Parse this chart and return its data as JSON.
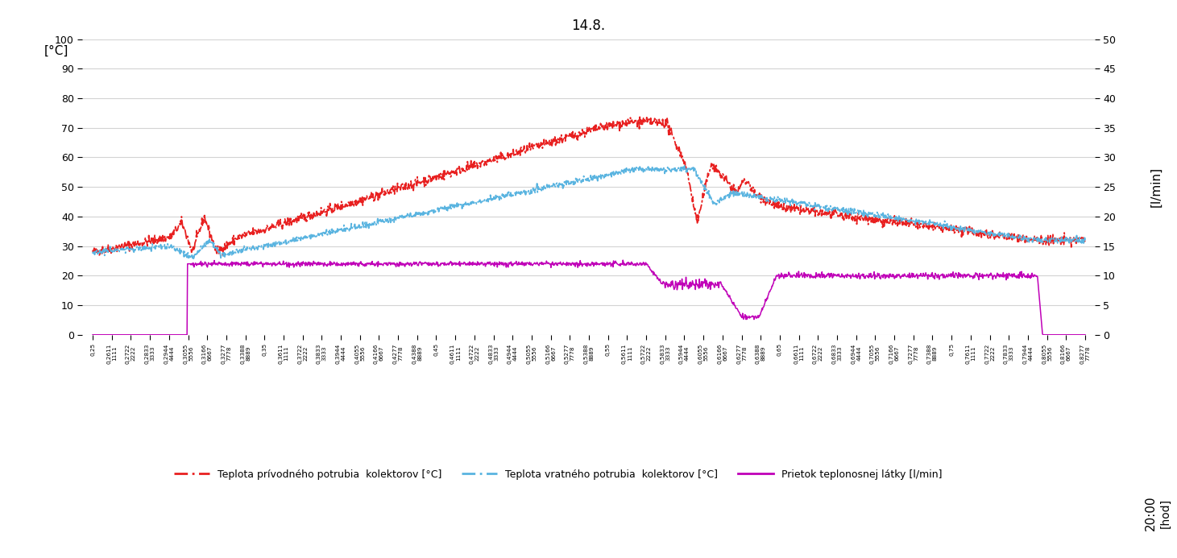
{
  "title": "14.8.",
  "title_fontsize": 12,
  "ylabel_left": "[°C]",
  "ylabel_right": "[l/min]",
  "ylim_left": [
    0,
    100
  ],
  "ylim_right": [
    0,
    50
  ],
  "yticks_left": [
    0,
    10,
    20,
    30,
    40,
    50,
    60,
    70,
    80,
    90,
    100
  ],
  "yticks_right": [
    0,
    5,
    10,
    15,
    20,
    25,
    30,
    35,
    40,
    45,
    50
  ],
  "background_color": "#ffffff",
  "grid_color": "#d3d3d3",
  "red_color": "#e82020",
  "blue_color": "#5ab4e0",
  "magenta_color": "#c000b8",
  "legend": [
    {
      "label": "Teplota prívodného potrubia  kolektorov [°C]"
    },
    {
      "label": "Teplota vratného potrubia  kolektorov [°C]"
    },
    {
      "label": "Prietok teplonosnej látky [l/min]"
    }
  ],
  "x_ticks": [
    0.25,
    0.261111111,
    0.272222222,
    0.283333333,
    0.294444444,
    0.305555556,
    0.316666667,
    0.327777778,
    0.338888889,
    0.35,
    0.361111111,
    0.372222222,
    0.383333333,
    0.394444444,
    0.405555556,
    0.416666667,
    0.427777778,
    0.438888889,
    0.45,
    0.461111111,
    0.472222222,
    0.483333333,
    0.494444444,
    0.505555556,
    0.516666667,
    0.527777778,
    0.538888889,
    0.55,
    0.561111111,
    0.572222222,
    0.583333333,
    0.594444444,
    0.605555556,
    0.616666667,
    0.627777778,
    0.638888889,
    0.65,
    0.661111111,
    0.672222222,
    0.683333333,
    0.694444444,
    0.705555556,
    0.716666667,
    0.727777778,
    0.738888889,
    0.75,
    0.761111111,
    0.772222222,
    0.783333333,
    0.794444444,
    0.805555556,
    0.816666667,
    0.827777778
  ],
  "x_labels": [
    "0,25",
    "0,2611\n1111",
    "0,2722\n2222",
    "0,2833\n3333",
    "0,2944\n4444",
    "0,3055\n5556",
    "0,3166\n6667",
    "0,3277\n7778",
    "0,3388\n8889",
    "0,35",
    "0,3611\n1111",
    "0,3722\n2222",
    "0,3833\n3333",
    "0,3944\n4444",
    "0,4055\n5556",
    "0,4166\n6667",
    "0,4277\n7778",
    "0,4388\n8889",
    "0,45",
    "0,4611\n1111",
    "0,4722\n2222",
    "0,4833\n3333",
    "0,4944\n4444",
    "0,5055\n5556",
    "0,5166\n6667",
    "0,5277\n7778",
    "0,5388\n8889",
    "0,55",
    "0,5611\n1111",
    "0,5722\n2222",
    "0,5833\n3333",
    "0,5944\n4444",
    "0,6055\n5556",
    "0,6166\n6667",
    "0,6277\n7778",
    "0,6388\n8889",
    "0,65",
    "0,6611\n1111",
    "0,6722\n2222",
    "0,6833\n3333",
    "0,6944\n4444",
    "0,7055\n5556",
    "0,7166\n6667",
    "0,7277\n7778",
    "0,7388\n8889",
    "0,75",
    "0,7611\n1111",
    "0,7722\n2222",
    "0,7833\n3333",
    "0,7944\n4444",
    "0,8055\n5556",
    "0,8166\n6667",
    "0,8277\n7778"
  ]
}
